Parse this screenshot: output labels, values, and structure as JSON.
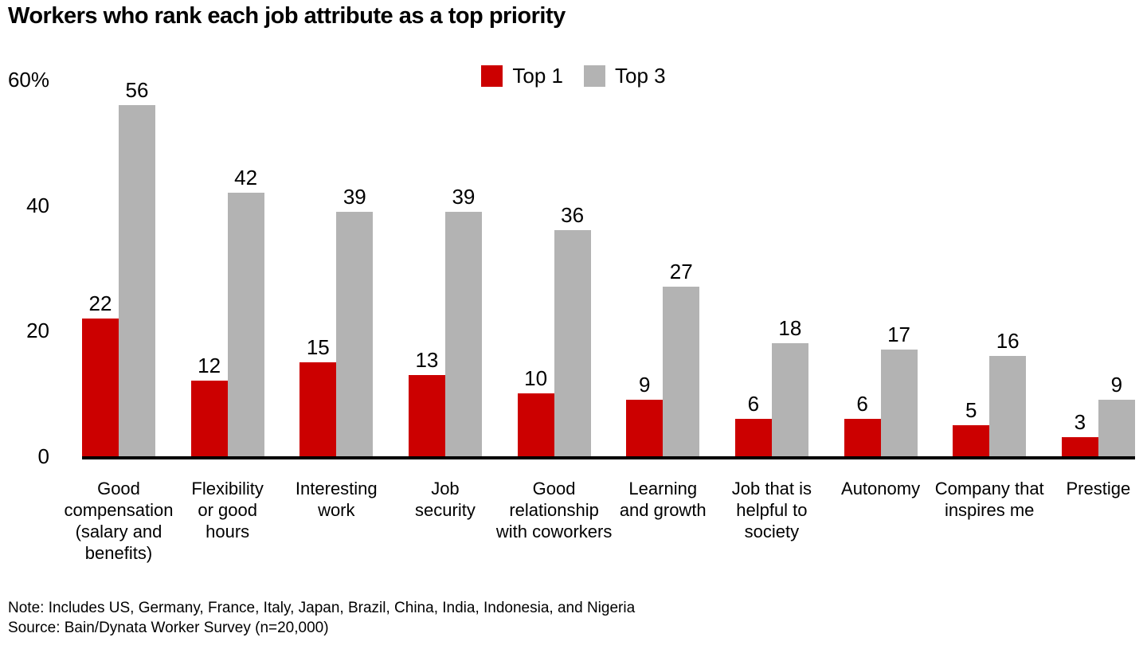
{
  "page": {
    "title": "Workers who rank each job attribute as a top priority",
    "note": "Note: Includes US, Germany, France, Italy, Japan, Brazil, China, India, Indonesia, and Nigeria",
    "source": "Source: Bain/Dynata Worker Survey (n=20,000)"
  },
  "colors": {
    "top1_red": "#cc0000",
    "top3_gray": "#b3b3b3",
    "axis_black": "#000000",
    "background": "#ffffff"
  },
  "chart_data": {
    "type": "bar",
    "title": "Workers who rank each job attribute as a top priority",
    "categories": [
      "Good compensation (salary and benefits)",
      "Flexibility or good hours",
      "Interesting work",
      "Job security",
      "Good relationship with coworkers",
      "Learning and growth",
      "Job that is helpful to society",
      "Autonomy",
      "Company that inspires me",
      "Prestige"
    ],
    "categories_display": [
      "Good\ncompensation\n(salary and\nbenefits)",
      "Flexibility\nor good\nhours",
      "Interesting\nwork",
      "Job\nsecurity",
      "Good\nrelationship\nwith coworkers",
      "Learning\nand growth",
      "Job that is\nhelpful to\nsociety",
      "Autonomy",
      "Company that\ninspires me",
      "Prestige"
    ],
    "series": [
      {
        "name": "Top 1",
        "color": "#cc0000",
        "values": [
          22,
          12,
          15,
          13,
          10,
          9,
          6,
          6,
          5,
          3
        ]
      },
      {
        "name": "Top 3",
        "color": "#b3b3b3",
        "values": [
          56,
          42,
          39,
          39,
          36,
          27,
          18,
          17,
          16,
          9
        ]
      }
    ],
    "unit": "%",
    "xlabel": "",
    "ylabel": "",
    "ylim": [
      0,
      60
    ],
    "yticks": [
      {
        "value": 0,
        "label": "0"
      },
      {
        "value": 20,
        "label": "20"
      },
      {
        "value": 40,
        "label": "40"
      },
      {
        "value": 60,
        "label": "60%"
      }
    ],
    "grid": false,
    "legend_position": "top-center",
    "value_labels": true
  }
}
